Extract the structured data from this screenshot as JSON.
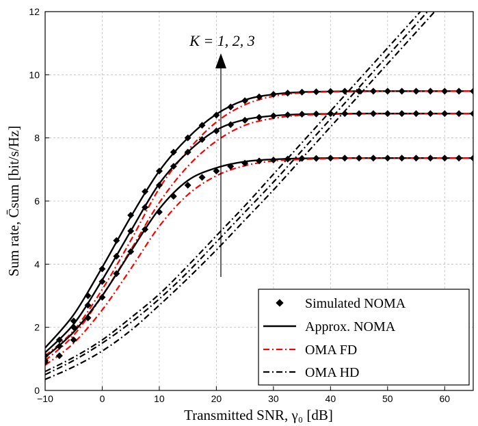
{
  "chart_data": {
    "type": "line",
    "xlabel": "Transmitted SNR, γ₀ [dB]",
    "ylabel": "Sum rate, C̄sum [bit/s/Hz]",
    "xlim": [
      -10,
      65
    ],
    "ylim": [
      0,
      12
    ],
    "x_ticks": [
      "−10",
      "0",
      "10",
      "20",
      "30",
      "40",
      "50",
      "60"
    ],
    "y_ticks": [
      "0",
      "2",
      "4",
      "6",
      "8",
      "10",
      "12"
    ],
    "grid": true,
    "legend_position": "bottom-right",
    "annotation": "K = 1, 2, 3",
    "colors": {
      "black": "#000000",
      "red": "#ff0000",
      "grid": "#bdbdbd"
    },
    "legend": [
      {
        "label": "Simulated NOMA",
        "style": "diamond-marker",
        "color": "#000000"
      },
      {
        "label": "Approx. NOMA",
        "style": "solid",
        "color": "#000000"
      },
      {
        "label": "OMA FD",
        "style": "dash-dot",
        "color": "#ff0000"
      },
      {
        "label": "OMA HD",
        "style": "dash-dot",
        "color": "#000000"
      }
    ],
    "x": [
      -10,
      -5,
      0,
      5,
      10,
      15,
      20,
      25,
      30,
      35,
      40,
      45,
      50,
      55,
      60,
      65
    ],
    "series": [
      {
        "name": "Approx. NOMA",
        "group": "K=1",
        "values": [
          1.35,
          2.4,
          3.9,
          5.5,
          6.95,
          8.0,
          8.75,
          9.2,
          9.38,
          9.45,
          9.47,
          9.48,
          9.48,
          9.48,
          9.48,
          9.48
        ]
      },
      {
        "name": "OMA FD",
        "group": "K=1",
        "values": [
          1.1,
          1.9,
          3.2,
          4.75,
          6.4,
          7.6,
          8.5,
          9.05,
          9.32,
          9.43,
          9.46,
          9.47,
          9.48,
          9.48,
          9.48,
          9.48
        ]
      },
      {
        "name": "Approx. NOMA",
        "group": "K=2",
        "values": [
          1.2,
          2.1,
          3.5,
          5.05,
          6.55,
          7.55,
          8.25,
          8.58,
          8.7,
          8.75,
          8.76,
          8.77,
          8.77,
          8.77,
          8.77,
          8.77
        ]
      },
      {
        "name": "OMA FD",
        "group": "K=2",
        "values": [
          0.95,
          1.75,
          3.0,
          4.45,
          5.95,
          7.1,
          7.9,
          8.4,
          8.62,
          8.72,
          8.75,
          8.76,
          8.77,
          8.77,
          8.77,
          8.77
        ]
      },
      {
        "name": "Approx. NOMA",
        "group": "K=3",
        "values": [
          1.05,
          1.85,
          3.0,
          4.4,
          5.75,
          6.65,
          7.05,
          7.25,
          7.32,
          7.35,
          7.36,
          7.36,
          7.36,
          7.36,
          7.36,
          7.36
        ]
      },
      {
        "name": "OMA FD",
        "group": "K=3",
        "values": [
          0.8,
          1.5,
          2.55,
          3.85,
          5.2,
          6.2,
          6.8,
          7.12,
          7.27,
          7.32,
          7.35,
          7.36,
          7.36,
          7.36,
          7.36,
          7.36
        ]
      },
      {
        "name": "OMA HD",
        "group": "K=1",
        "values": [
          0.6,
          1.05,
          1.6,
          2.3,
          3.05,
          3.95,
          4.9,
          5.85,
          6.85,
          7.85,
          8.85,
          9.85,
          10.85,
          11.85,
          12.85,
          13.85
        ]
      },
      {
        "name": "OMA HD",
        "group": "K=2",
        "values": [
          0.5,
          0.95,
          1.5,
          2.15,
          2.9,
          3.75,
          4.7,
          5.65,
          6.6,
          7.6,
          8.6,
          9.6,
          10.6,
          11.6,
          12.6,
          13.6
        ]
      },
      {
        "name": "OMA HD",
        "group": "K=3",
        "values": [
          0.35,
          0.75,
          1.25,
          1.9,
          2.7,
          3.55,
          4.45,
          5.4,
          6.35,
          7.35,
          8.35,
          9.35,
          10.35,
          11.35,
          12.35,
          13.35
        ]
      },
      {
        "name": "Simulated NOMA",
        "group": "K=1",
        "marker_x": [
          -10,
          -7.5,
          -5,
          -2.5,
          0,
          2.5,
          5,
          7.5,
          10,
          12.5,
          15,
          17.5,
          20,
          22.5,
          25,
          27.5,
          30,
          32.5,
          35,
          37.5,
          40,
          42.5,
          45,
          47.5,
          50,
          52.5,
          55,
          57.5,
          60,
          62.5,
          65
        ],
        "marker_y": [
          1.1,
          1.6,
          2.2,
          3.0,
          3.85,
          4.75,
          5.55,
          6.3,
          6.95,
          7.55,
          8.0,
          8.4,
          8.72,
          8.98,
          9.18,
          9.3,
          9.38,
          9.42,
          9.45,
          9.46,
          9.47,
          9.48,
          9.48,
          9.48,
          9.48,
          9.48,
          9.48,
          9.48,
          9.48,
          9.48,
          9.48
        ]
      },
      {
        "name": "Simulated NOMA",
        "group": "K=2",
        "marker_x": [
          -10,
          -7.5,
          -5,
          -2.5,
          0,
          2.5,
          5,
          7.5,
          10,
          12.5,
          15,
          17.5,
          20,
          22.5,
          25,
          27.5,
          30,
          32.5,
          35,
          37.5,
          40,
          42.5,
          45,
          47.5,
          50,
          52.5,
          55,
          57.5,
          60,
          62.5,
          65
        ],
        "marker_y": [
          0.95,
          1.4,
          2.0,
          2.7,
          3.45,
          4.25,
          5.05,
          5.8,
          6.5,
          7.1,
          7.55,
          7.95,
          8.22,
          8.42,
          8.56,
          8.65,
          8.7,
          8.73,
          8.75,
          8.76,
          8.77,
          8.77,
          8.77,
          8.77,
          8.77,
          8.77,
          8.77,
          8.77,
          8.77,
          8.77,
          8.77
        ]
      },
      {
        "name": "Simulated NOMA",
        "group": "K=3",
        "marker_x": [
          -10,
          -7.5,
          -5,
          -2.5,
          0,
          2.5,
          5,
          7.5,
          10,
          12.5,
          15,
          17.5,
          20,
          22.5,
          25,
          27.5,
          30,
          32.5,
          35,
          37.5,
          40,
          42.5,
          45,
          47.5,
          50,
          52.5,
          55,
          57.5,
          60,
          62.5,
          65
        ],
        "marker_y": [
          0.9,
          1.1,
          1.6,
          2.3,
          2.95,
          3.7,
          4.4,
          5.1,
          5.65,
          6.15,
          6.5,
          6.75,
          6.95,
          7.1,
          7.2,
          7.27,
          7.3,
          7.33,
          7.35,
          7.35,
          7.36,
          7.36,
          7.36,
          7.36,
          7.36,
          7.36,
          7.36,
          7.36,
          7.36,
          7.36,
          7.36
        ]
      }
    ]
  }
}
